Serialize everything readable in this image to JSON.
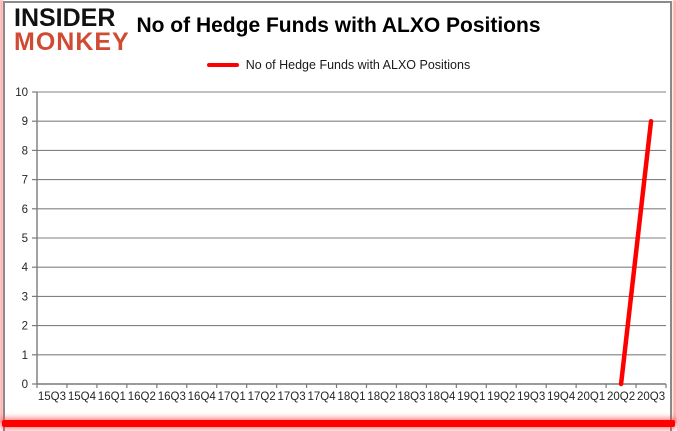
{
  "logo": {
    "line1": "INSIDER",
    "line2": "MONKEY",
    "line2_color": "#d14a32"
  },
  "header": {
    "title": "No of Hedge Funds with ALXO Positions"
  },
  "legend": {
    "label": "No of Hedge Funds with ALXO Positions",
    "swatch_color": "#ff0000"
  },
  "chart_data": {
    "type": "line",
    "title": "No of Hedge Funds with ALXO Positions",
    "categories": [
      "15Q3",
      "15Q4",
      "16Q1",
      "16Q2",
      "16Q3",
      "16Q4",
      "17Q1",
      "17Q2",
      "17Q3",
      "17Q4",
      "18Q1",
      "18Q2",
      "18Q3",
      "18Q4",
      "19Q1",
      "19Q2",
      "19Q3",
      "19Q4",
      "20Q1",
      "20Q2",
      "20Q3"
    ],
    "series": [
      {
        "name": "No of Hedge Funds with ALXO Positions",
        "color": "#ff0000",
        "values": [
          null,
          null,
          null,
          null,
          null,
          null,
          null,
          null,
          null,
          null,
          null,
          null,
          null,
          null,
          null,
          null,
          null,
          null,
          null,
          0,
          9
        ]
      }
    ],
    "xlabel": "",
    "ylabel": "",
    "ylim": [
      0,
      10
    ],
    "ytick_step": 1,
    "grid": "horizontal",
    "legend_position": "top-center"
  },
  "colors": {
    "grid": "#808080",
    "axis": "#7a7a7a",
    "tick_label": "#262626",
    "accent_red": "#ff0000",
    "border_gray": "#8a8a8a"
  }
}
